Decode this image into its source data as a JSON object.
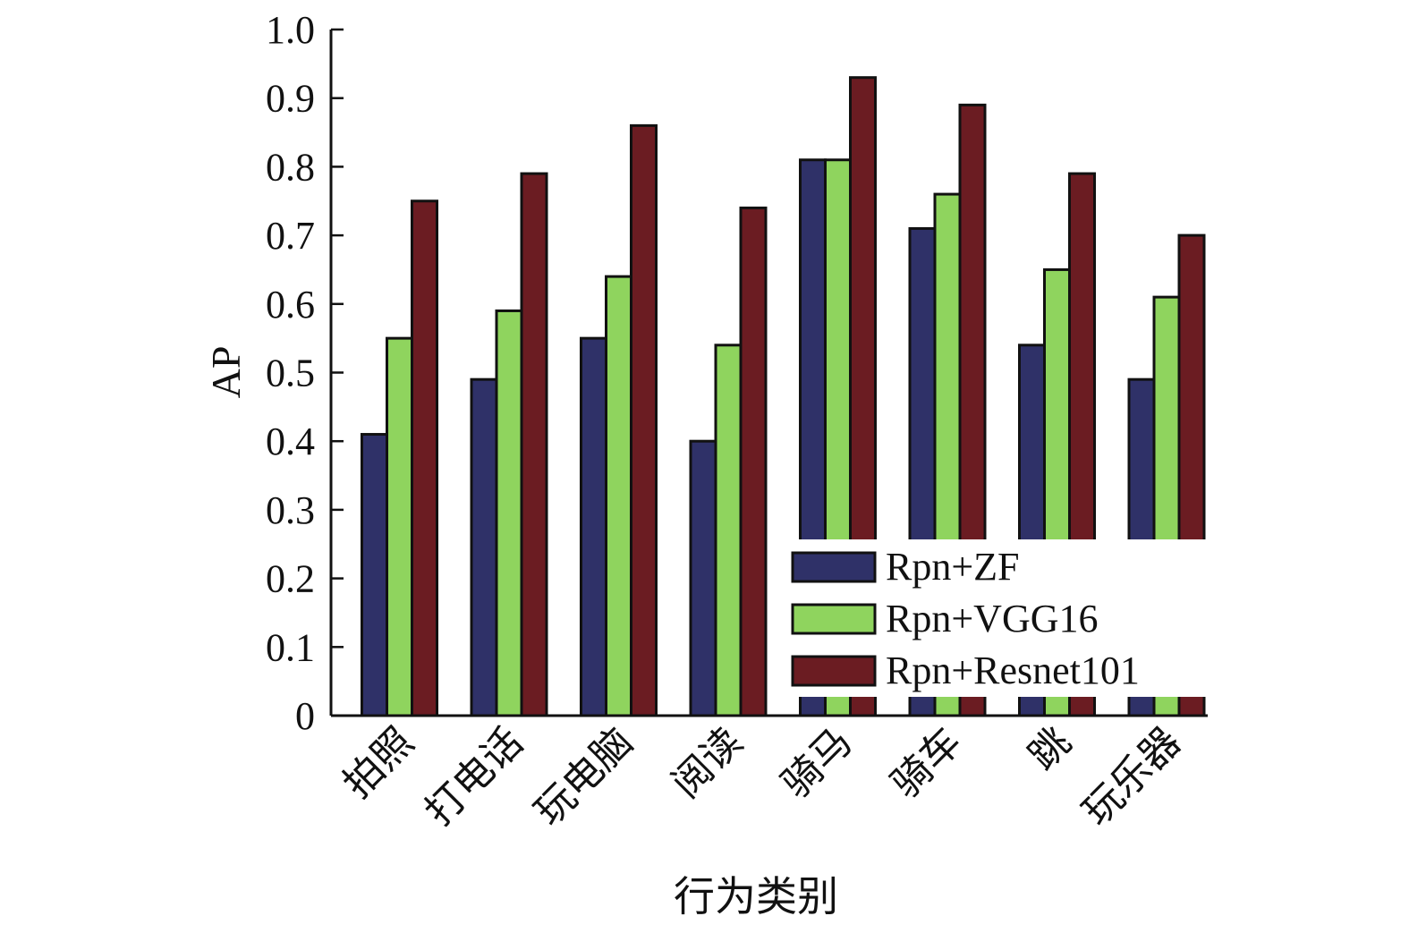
{
  "chart_data": {
    "type": "bar",
    "title": "",
    "xlabel": "行为类别",
    "ylabel": "AP",
    "ylim": [
      0,
      1.0
    ],
    "yticks": [
      "0",
      "0.1",
      "0.2",
      "0.3",
      "0.4",
      "0.5",
      "0.6",
      "0.7",
      "0.8",
      "0.9",
      "1.0"
    ],
    "grid": false,
    "legend_position": "bottom-right",
    "categories": [
      "拍照",
      "打电话",
      "玩电脑",
      "阅读",
      "骑马",
      "骑车",
      "跳",
      "玩乐器"
    ],
    "series": [
      {
        "name": "Rpn+ZF",
        "color": "#2f3168",
        "values": [
          0.41,
          0.49,
          0.55,
          0.4,
          0.81,
          0.71,
          0.54,
          0.49
        ]
      },
      {
        "name": "Rpn+VGG16",
        "color": "#8fd45e",
        "values": [
          0.55,
          0.59,
          0.64,
          0.54,
          0.81,
          0.76,
          0.65,
          0.61
        ]
      },
      {
        "name": "Rpn+Resnet101",
        "color": "#6b1c22",
        "values": [
          0.75,
          0.79,
          0.86,
          0.74,
          0.93,
          0.89,
          0.79,
          0.7
        ]
      }
    ]
  }
}
